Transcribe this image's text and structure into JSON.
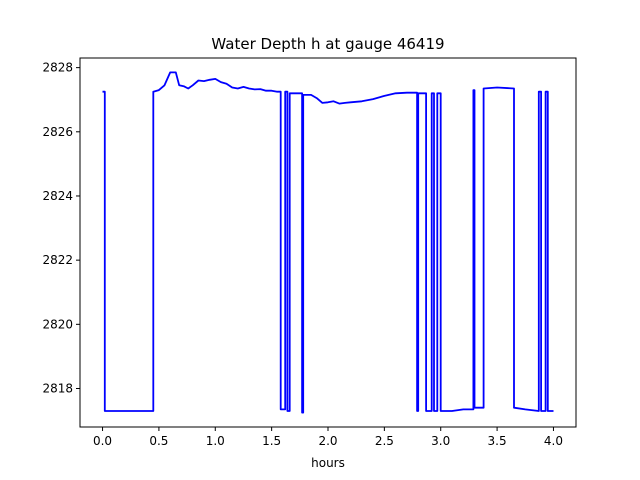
{
  "chart_data": {
    "type": "line",
    "title": "Water Depth h at gauge 46419",
    "xlabel": "hours",
    "ylabel": "",
    "xlim": [
      -0.2,
      4.2
    ],
    "ylim": [
      2816.8,
      2828.3
    ],
    "x_ticks": [
      0.0,
      0.5,
      1.0,
      1.5,
      2.0,
      2.5,
      3.0,
      3.5,
      4.0
    ],
    "x_tick_labels": [
      "0.0",
      "0.5",
      "1.0",
      "1.5",
      "2.0",
      "2.5",
      "3.0",
      "3.5",
      "4.0"
    ],
    "y_ticks": [
      2818,
      2820,
      2822,
      2824,
      2826,
      2828
    ],
    "y_tick_labels": [
      "2818",
      "2820",
      "2822",
      "2824",
      "2826",
      "2828"
    ],
    "grid": false,
    "colors": {
      "line": "#0000ff"
    },
    "series": [
      {
        "x": [
          0.0,
          0.02,
          0.02,
          0.45,
          0.45,
          0.5,
          0.55,
          0.6,
          0.65,
          0.68,
          0.72,
          0.76,
          0.8,
          0.85,
          0.9,
          0.95,
          1.0,
          1.05,
          1.1,
          1.15,
          1.2,
          1.25,
          1.3,
          1.35,
          1.4,
          1.45,
          1.5,
          1.55,
          1.58,
          1.58,
          1.62,
          1.62,
          1.64,
          1.64,
          1.66,
          1.66,
          1.77,
          1.77,
          1.78,
          1.78,
          1.85,
          1.9,
          1.95,
          2.0,
          2.05,
          2.1,
          2.15,
          2.2,
          2.3,
          2.4,
          2.5,
          2.6,
          2.7,
          2.79,
          2.79,
          2.8,
          2.8,
          2.87,
          2.87,
          2.92,
          2.92,
          2.94,
          2.94,
          2.97,
          2.97,
          3.0,
          3.0,
          3.1,
          3.2,
          3.29,
          3.29,
          3.3,
          3.3,
          3.38,
          3.38,
          3.5,
          3.65,
          3.65,
          3.75,
          3.87,
          3.87,
          3.89,
          3.89,
          3.93,
          3.93,
          3.95,
          3.95,
          4.0
        ],
        "y": [
          2827.25,
          2827.25,
          2817.3,
          2817.3,
          2827.25,
          2827.3,
          2827.45,
          2827.85,
          2827.85,
          2827.45,
          2827.42,
          2827.35,
          2827.45,
          2827.6,
          2827.58,
          2827.62,
          2827.65,
          2827.55,
          2827.5,
          2827.38,
          2827.35,
          2827.4,
          2827.35,
          2827.32,
          2827.33,
          2827.28,
          2827.28,
          2827.25,
          2827.25,
          2817.35,
          2817.35,
          2827.25,
          2827.25,
          2817.3,
          2817.3,
          2827.2,
          2827.2,
          2817.25,
          2817.25,
          2827.15,
          2827.15,
          2827.05,
          2826.9,
          2826.92,
          2826.95,
          2826.88,
          2826.9,
          2826.92,
          2826.95,
          2827.02,
          2827.12,
          2827.2,
          2827.22,
          2827.22,
          2817.3,
          2817.3,
          2827.2,
          2827.2,
          2817.3,
          2817.3,
          2827.2,
          2827.2,
          2817.3,
          2817.3,
          2827.2,
          2827.2,
          2817.3,
          2817.3,
          2817.35,
          2817.35,
          2827.3,
          2827.3,
          2817.4,
          2817.4,
          2827.35,
          2827.38,
          2827.35,
          2817.4,
          2817.35,
          2817.3,
          2827.25,
          2827.25,
          2817.3,
          2817.3,
          2827.25,
          2827.25,
          2817.3,
          2817.3
        ]
      }
    ]
  }
}
